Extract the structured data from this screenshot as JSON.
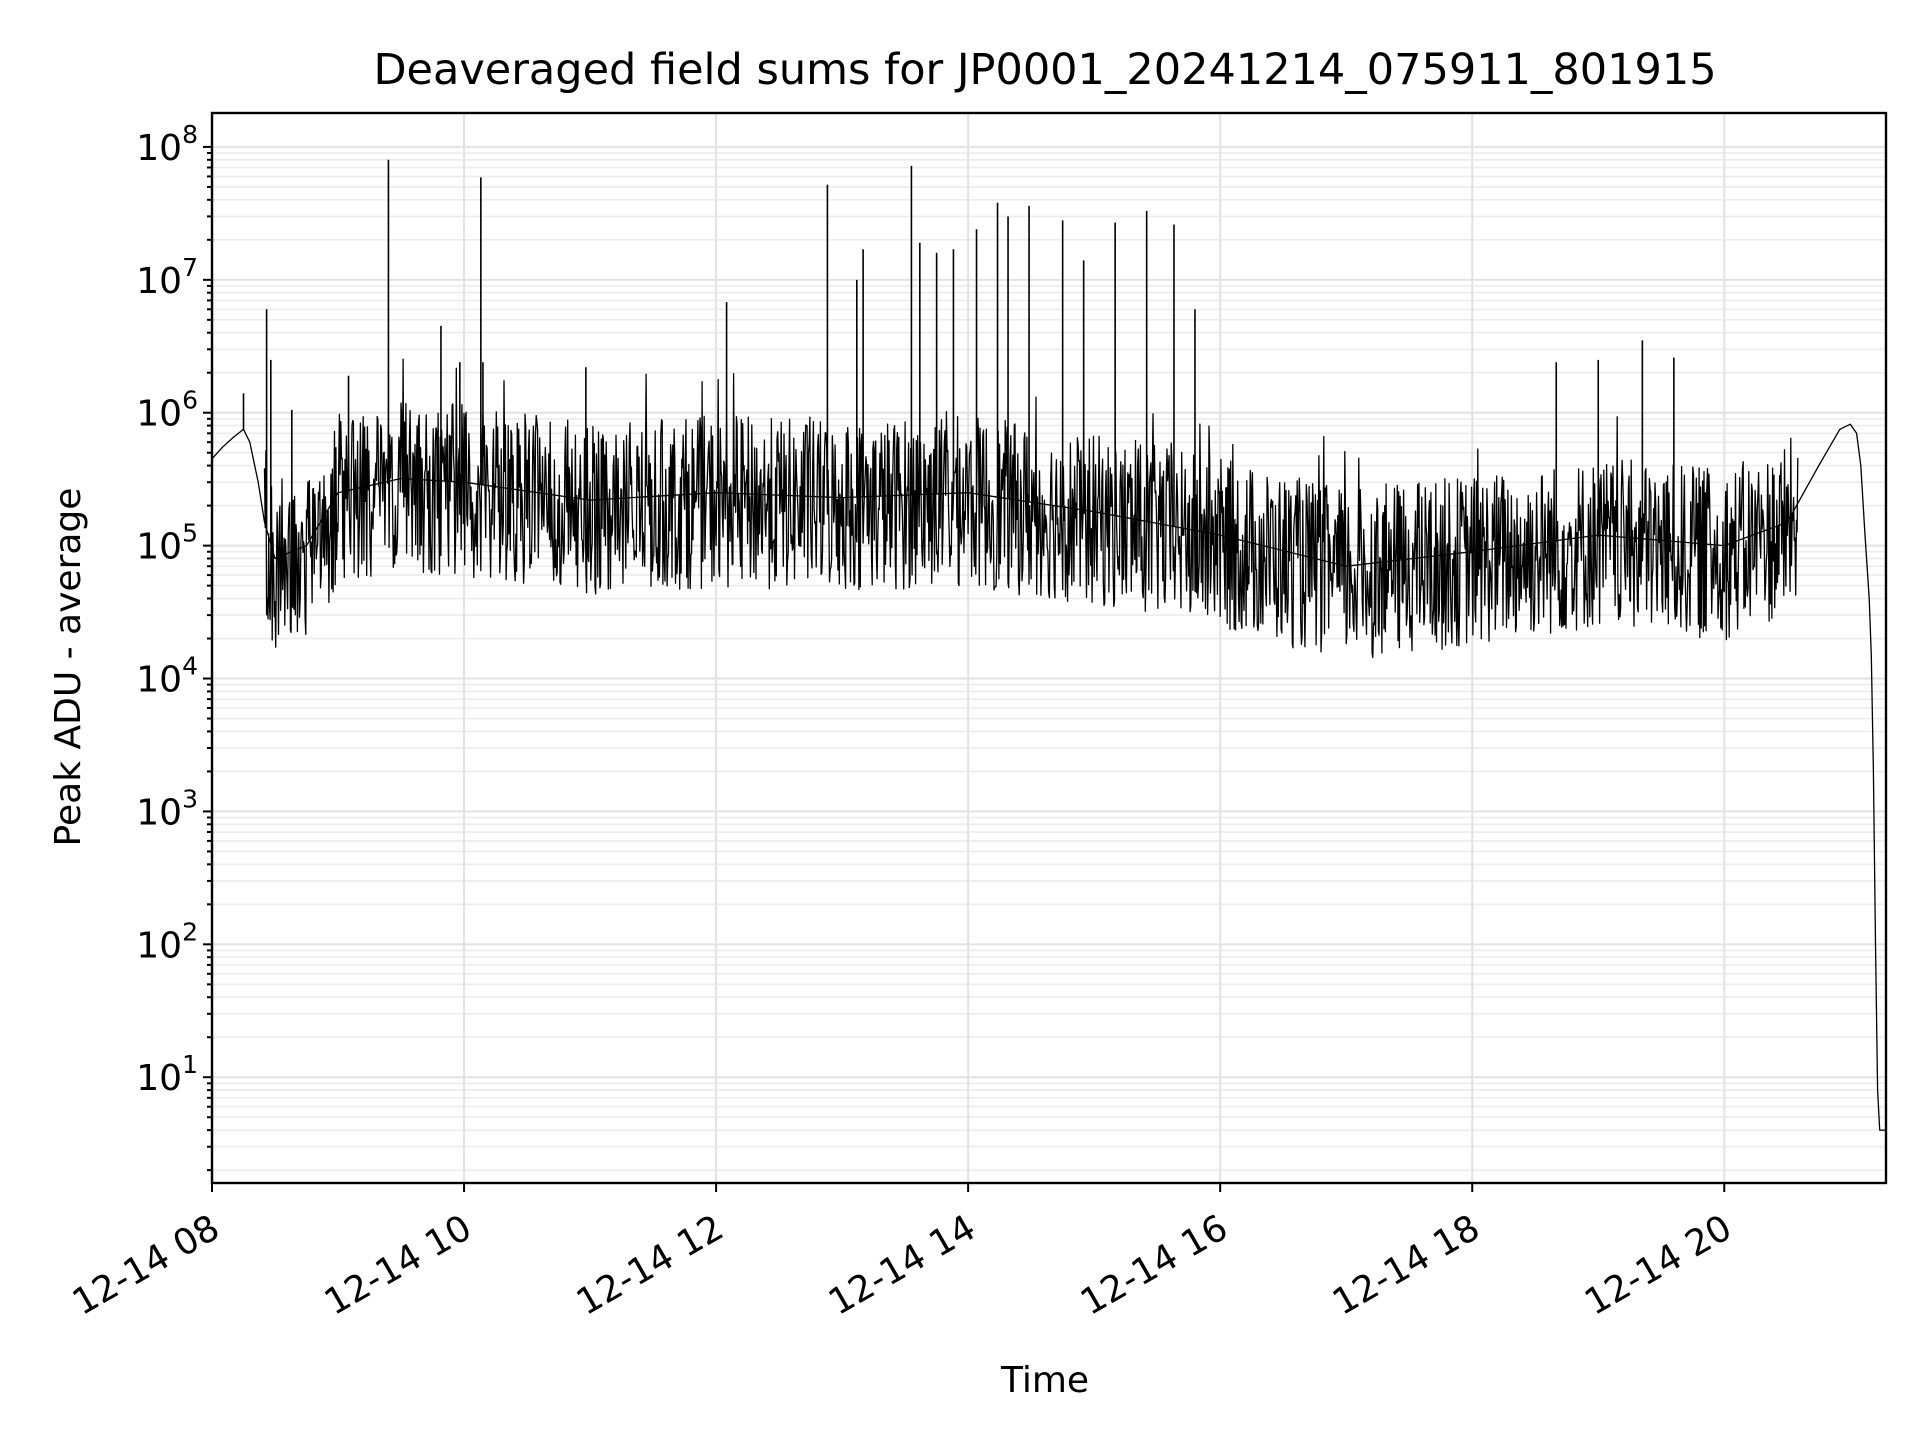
{
  "chart_data": {
    "type": "line",
    "title": "Deaveraged field sums for JP0001_20241214_075911_801915",
    "xlabel": "Time",
    "ylabel": "Peak ADU - average",
    "xscale": "time",
    "yscale": "log",
    "xlim": [
      "2024-12-14T08:00",
      "2024-12-14T21:17"
    ],
    "ylim": [
      1.6,
      180000000
    ],
    "grid": true,
    "grid_minor": true,
    "legend": "none",
    "x_ticks": [
      {
        "value": "2024-12-14T08:00",
        "label": "12-14 08"
      },
      {
        "value": "2024-12-14T10:00",
        "label": "12-14 10"
      },
      {
        "value": "2024-12-14T12:00",
        "label": "12-14 12"
      },
      {
        "value": "2024-12-14T14:00",
        "label": "12-14 14"
      },
      {
        "value": "2024-12-14T16:00",
        "label": "12-14 16"
      },
      {
        "value": "2024-12-14T18:00",
        "label": "12-14 18"
      },
      {
        "value": "2024-12-14T20:00",
        "label": "12-14 20"
      }
    ],
    "y_ticks": [
      {
        "value": 10,
        "base": "10",
        "exp": "1"
      },
      {
        "value": 100,
        "base": "10",
        "exp": "2"
      },
      {
        "value": 1000,
        "base": "10",
        "exp": "3"
      },
      {
        "value": 10000,
        "base": "10",
        "exp": "4"
      },
      {
        "value": 100000,
        "base": "10",
        "exp": "5"
      },
      {
        "value": 1000000,
        "base": "10",
        "exp": "6"
      },
      {
        "value": 10000000,
        "base": "10",
        "exp": "7"
      },
      {
        "value": 100000000,
        "base": "10",
        "exp": "8"
      }
    ],
    "series": [
      {
        "color": "#000000",
        "x": [
          "2024-12-14T08:00",
          "2024-12-14T08:05",
          "2024-12-14T08:10",
          "2024-12-14T08:15",
          "2024-12-14T08:18",
          "2024-12-14T08:22",
          "2024-12-14T08:25",
          "2024-12-14T08:30",
          "2024-12-14T08:45",
          "2024-12-14T09:00",
          "2024-12-14T09:30",
          "2024-12-14T10:00",
          "2024-12-14T11:00",
          "2024-12-14T12:00",
          "2024-12-14T13:00",
          "2024-12-14T14:00",
          "2024-12-14T15:00",
          "2024-12-14T16:00",
          "2024-12-14T17:00",
          "2024-12-14T18:00",
          "2024-12-14T19:00",
          "2024-12-14T20:00",
          "2024-12-14T20:30",
          "2024-12-14T20:45",
          "2024-12-14T20:55",
          "2024-12-14T21:00",
          "2024-12-14T21:03",
          "2024-12-14T21:05",
          "2024-12-14T21:07",
          "2024-12-14T21:09",
          "2024-12-14T21:10",
          "2024-12-14T21:11",
          "2024-12-14T21:12",
          "2024-12-14T21:13",
          "2024-12-14T21:14",
          "2024-12-14T21:17"
        ],
        "y": [
          450000,
          550000,
          650000,
          750000,
          600000,
          300000,
          150000,
          80000,
          100000,
          250000,
          320000,
          300000,
          220000,
          250000,
          230000,
          250000,
          180000,
          120000,
          70000,
          90000,
          120000,
          100000,
          150000,
          400000,
          750000,
          820000,
          700000,
          400000,
          120000,
          40000,
          15000,
          2000,
          100,
          8,
          4,
          4
        ]
      }
    ],
    "spikes": [
      {
        "x": "2024-12-14T08:15",
        "y": 1400000
      },
      {
        "x": "2024-12-14T08:26",
        "y": 6000000
      },
      {
        "x": "2024-12-14T08:28",
        "y": 2500000
      },
      {
        "x": "2024-12-14T08:38",
        "y": 1050000
      },
      {
        "x": "2024-12-14T09:05",
        "y": 1900000
      },
      {
        "x": "2024-12-14T09:24",
        "y": 80000000
      },
      {
        "x": "2024-12-14T09:49",
        "y": 4500000
      },
      {
        "x": "2024-12-14T09:58",
        "y": 2400000
      },
      {
        "x": "2024-12-14T10:08",
        "y": 59000000
      },
      {
        "x": "2024-12-14T10:09",
        "y": 2400000
      },
      {
        "x": "2024-12-14T10:58",
        "y": 2200000
      },
      {
        "x": "2024-12-14T12:05",
        "y": 6800000
      },
      {
        "x": "2024-12-14T12:53",
        "y": 52000000
      },
      {
        "x": "2024-12-14T13:07",
        "y": 10000000
      },
      {
        "x": "2024-12-14T13:10",
        "y": 17000000
      },
      {
        "x": "2024-12-14T13:33",
        "y": 72000000
      },
      {
        "x": "2024-12-14T13:37",
        "y": 19000000
      },
      {
        "x": "2024-12-14T13:45",
        "y": 16000000
      },
      {
        "x": "2024-12-14T13:53",
        "y": 17000000
      },
      {
        "x": "2024-12-14T14:04",
        "y": 24000000
      },
      {
        "x": "2024-12-14T14:14",
        "y": 38000000
      },
      {
        "x": "2024-12-14T14:19",
        "y": 30000000
      },
      {
        "x": "2024-12-14T14:29",
        "y": 36000000
      },
      {
        "x": "2024-12-14T14:45",
        "y": 28000000
      },
      {
        "x": "2024-12-14T14:55",
        "y": 14000000
      },
      {
        "x": "2024-12-14T15:10",
        "y": 27000000
      },
      {
        "x": "2024-12-14T15:25",
        "y": 33000000
      },
      {
        "x": "2024-12-14T15:38",
        "y": 26000000
      },
      {
        "x": "2024-12-14T15:48",
        "y": 6000000
      },
      {
        "x": "2024-12-14T18:40",
        "y": 2400000
      },
      {
        "x": "2024-12-14T19:00",
        "y": 2500000
      },
      {
        "x": "2024-12-14T19:21",
        "y": 3500000
      },
      {
        "x": "2024-12-14T19:36",
        "y": 2600000
      }
    ]
  }
}
